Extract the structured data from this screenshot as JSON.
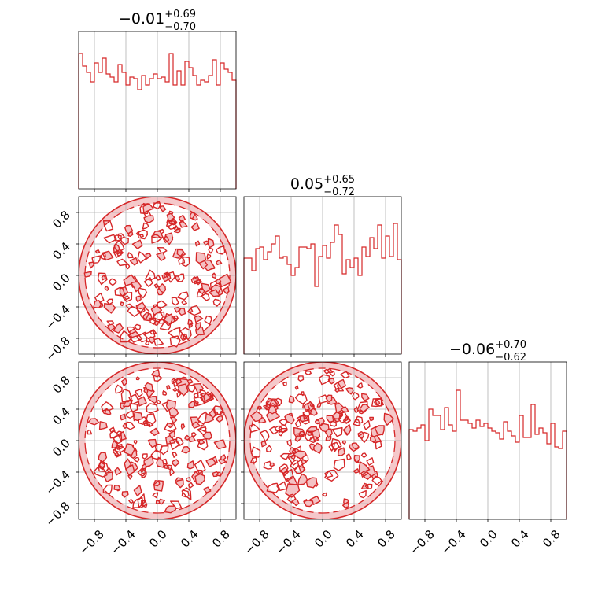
{
  "chart_data": {
    "type": "corner",
    "color": "#d62728",
    "fill_color": "#f4c2c4",
    "grid": true,
    "range": [
      -1.0,
      1.0
    ],
    "ticks": [
      -0.8,
      -0.4,
      0.0,
      0.4,
      0.8
    ],
    "tick_labels": [
      "−0.8",
      "−0.4",
      "0.0",
      "0.4",
      "0.8"
    ],
    "parameters": [
      {
        "title_median": "−0.01",
        "title_plus": "+0.69",
        "title_minus": "−0.70",
        "histogram": [
          0.86,
          0.78,
          0.74,
          0.68,
          0.8,
          0.74,
          0.83,
          0.73,
          0.71,
          0.68,
          0.79,
          0.74,
          0.66,
          0.71,
          0.7,
          0.63,
          0.72,
          0.66,
          0.7,
          0.73,
          0.7,
          0.71,
          0.68,
          0.86,
          0.66,
          0.75,
          0.66,
          0.81,
          0.77,
          0.72,
          0.66,
          0.69,
          0.68,
          0.72,
          0.82,
          0.66,
          0.8,
          0.76,
          0.74,
          0.69
        ]
      },
      {
        "title_median": "0.05",
        "title_plus": "+0.65",
        "title_minus": "−0.72",
        "histogram": [
          0.61,
          0.61,
          0.53,
          0.67,
          0.68,
          0.6,
          0.65,
          0.7,
          0.75,
          0.61,
          0.62,
          0.57,
          0.5,
          0.55,
          0.68,
          0.68,
          0.67,
          0.7,
          0.43,
          0.62,
          0.69,
          0.61,
          0.71,
          0.82,
          0.76,
          0.51,
          0.6,
          0.55,
          0.61,
          0.5,
          0.68,
          0.62,
          0.74,
          0.67,
          0.82,
          0.61,
          0.75,
          0.62,
          0.83,
          0.6
        ]
      },
      {
        "title_median": "−0.06",
        "title_plus": "+0.70",
        "title_minus": "−0.62",
        "histogram": [
          0.57,
          0.56,
          0.58,
          0.6,
          0.5,
          0.7,
          0.66,
          0.66,
          0.57,
          0.71,
          0.6,
          0.56,
          0.82,
          0.63,
          0.63,
          0.61,
          0.58,
          0.63,
          0.59,
          0.61,
          0.58,
          0.56,
          0.55,
          0.51,
          0.62,
          0.56,
          0.53,
          0.49,
          0.66,
          0.52,
          0.52,
          0.73,
          0.54,
          0.58,
          0.55,
          0.48,
          0.61,
          0.46,
          0.45,
          0.56
        ]
      }
    ],
    "contour_panels": [
      {
        "row": 1,
        "col": 0,
        "x_param": 0,
        "y_param": 1
      },
      {
        "row": 2,
        "col": 0,
        "x_param": 0,
        "y_param": 2
      },
      {
        "row": 2,
        "col": 1,
        "x_param": 1,
        "y_param": 2
      }
    ]
  }
}
